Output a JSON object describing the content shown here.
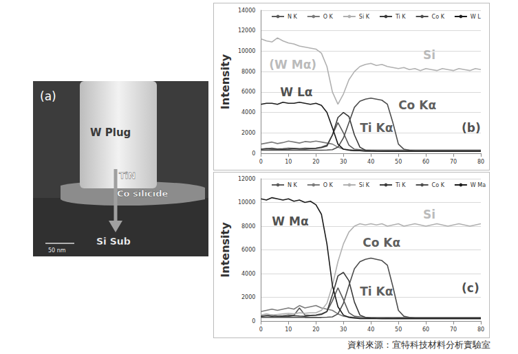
{
  "panel_a": {
    "label": "(a)",
    "labels": [
      "W Plug",
      "TiN",
      "Co silicide",
      "Si Sub"
    ],
    "scale_bar": "50 nm"
  },
  "source": "資料來源：宜特科技材料分析實驗室",
  "chart_data": [
    {
      "type": "line",
      "y_label": "Intensity",
      "legend": "top",
      "grid": true,
      "xlim": [
        0,
        80
      ],
      "xticks": [
        0,
        10,
        20,
        30,
        40,
        50,
        60,
        70,
        80
      ],
      "ylim": [
        0,
        14000
      ],
      "yticks": [
        0,
        2000,
        4000,
        6000,
        8000,
        10000,
        12000,
        14000
      ],
      "x": [
        0,
        2,
        4,
        6,
        8,
        10,
        12,
        14,
        16,
        18,
        20,
        22,
        24,
        26,
        28,
        30,
        32,
        34,
        36,
        38,
        40,
        42,
        44,
        46,
        48,
        50,
        52,
        54,
        56,
        58,
        60,
        62,
        64,
        66,
        68,
        70,
        72,
        74,
        76,
        78,
        80
      ],
      "series": [
        {
          "name": "N K",
          "color": "#5a5a5a",
          "values": [
            400,
            450,
            500,
            420,
            450,
            500,
            480,
            450,
            500,
            480,
            500,
            600,
            800,
            1800,
            3000,
            2000,
            800,
            400,
            350,
            300,
            300,
            300,
            300,
            300,
            300,
            300,
            300,
            300,
            300,
            300,
            300,
            300,
            300,
            300,
            300,
            300,
            300,
            300,
            300,
            300,
            300
          ]
        },
        {
          "name": "O K",
          "color": "#7a7a7a",
          "values": [
            900,
            1000,
            1100,
            950,
            1050,
            1200,
            1100,
            1000,
            1150,
            1100,
            1200,
            1100,
            1000,
            900,
            600,
            400,
            350,
            300,
            300,
            300,
            300,
            300,
            300,
            300,
            300,
            300,
            300,
            300,
            300,
            300,
            300,
            300,
            300,
            300,
            300,
            300,
            300,
            300,
            300,
            300,
            300
          ]
        },
        {
          "name": "Si K",
          "color": "#b0b0b0",
          "values": [
            11200,
            11000,
            10900,
            11300,
            11000,
            10800,
            10700,
            10500,
            10400,
            10300,
            10200,
            9800,
            8500,
            6000,
            4800,
            5800,
            7200,
            8000,
            8500,
            8700,
            8800,
            8600,
            8700,
            8500,
            8400,
            8300,
            8400,
            8200,
            8300,
            8100,
            8300,
            8200,
            8100,
            8300,
            8200,
            8100,
            8300,
            8200,
            8100,
            8300,
            8200
          ]
        },
        {
          "name": "Ti K",
          "color": "#3a3a3a",
          "values": [
            400,
            450,
            400,
            420,
            380,
            400,
            450,
            420,
            400,
            450,
            480,
            550,
            700,
            1800,
            3500,
            4000,
            3600,
            1800,
            600,
            300,
            250,
            220,
            200,
            210,
            200,
            220,
            200,
            210,
            200,
            200,
            200,
            200,
            200,
            200,
            200,
            200,
            200,
            200,
            200,
            200,
            200
          ]
        },
        {
          "name": "Co K",
          "color": "#4d4d4d",
          "values": [
            300,
            320,
            300,
            310,
            300,
            320,
            300,
            310,
            300,
            300,
            300,
            300,
            320,
            350,
            600,
            1500,
            3000,
            4500,
            5100,
            5300,
            5400,
            5300,
            5200,
            4800,
            3000,
            900,
            400,
            300,
            250,
            250,
            250,
            250,
            250,
            250,
            250,
            250,
            250,
            250,
            250,
            250,
            250
          ]
        },
        {
          "name": "W L",
          "color": "#1a1a1a",
          "values": [
            4800,
            4900,
            4900,
            4800,
            5000,
            4900,
            4900,
            5000,
            4900,
            4800,
            4900,
            4700,
            4000,
            2500,
            900,
            400,
            300,
            250,
            250,
            200,
            200,
            200,
            200,
            200,
            200,
            200,
            200,
            200,
            200,
            200,
            200,
            200,
            200,
            200,
            200,
            200,
            200,
            200,
            200,
            200,
            200
          ]
        }
      ],
      "annotations": [
        {
          "text": "(W Mα)",
          "x": 3,
          "y": 8700,
          "color": "#a8a8a8"
        },
        {
          "text": "Si",
          "x": 59,
          "y": 9600,
          "color": "#a8a8a8"
        },
        {
          "text": "W Lα",
          "x": 7,
          "y": 6000,
          "color": "#222222"
        },
        {
          "text": "Ti Kα",
          "x": 36,
          "y": 2500,
          "color": "#333333"
        },
        {
          "text": "Co Kα",
          "x": 50,
          "y": 4700,
          "color": "#333333"
        },
        {
          "text": "(b)",
          "x": 73,
          "y": 2500,
          "color": "#222222"
        }
      ]
    },
    {
      "type": "line",
      "y_label": "Intensity",
      "legend": "top",
      "grid": true,
      "xlim": [
        0,
        80
      ],
      "xticks": [
        0,
        10,
        20,
        30,
        40,
        50,
        60,
        70,
        80
      ],
      "ylim": [
        0,
        12000
      ],
      "yticks": [
        0,
        2000,
        4000,
        6000,
        8000,
        10000,
        12000
      ],
      "x": [
        0,
        2,
        4,
        6,
        8,
        10,
        12,
        14,
        16,
        18,
        20,
        22,
        24,
        26,
        28,
        30,
        32,
        34,
        36,
        38,
        40,
        42,
        44,
        46,
        48,
        50,
        52,
        54,
        56,
        58,
        60,
        62,
        64,
        66,
        68,
        70,
        72,
        74,
        76,
        78,
        80
      ],
      "series": [
        {
          "name": "N K",
          "color": "#5a5a5a",
          "values": [
            400,
            450,
            500,
            420,
            450,
            500,
            480,
            1100,
            500,
            480,
            500,
            600,
            800,
            1700,
            2800,
            1800,
            700,
            400,
            350,
            300,
            300,
            300,
            300,
            300,
            300,
            300,
            300,
            300,
            300,
            300,
            300,
            300,
            300,
            300,
            300,
            300,
            300,
            300,
            300,
            300,
            300
          ]
        },
        {
          "name": "O K",
          "color": "#7a7a7a",
          "values": [
            800,
            900,
            1000,
            900,
            1000,
            1100,
            1000,
            1300,
            1100,
            1200,
            1300,
            1100,
            1000,
            900,
            600,
            400,
            350,
            300,
            300,
            300,
            300,
            300,
            300,
            300,
            300,
            300,
            300,
            300,
            300,
            300,
            300,
            300,
            300,
            300,
            300,
            300,
            300,
            300,
            300,
            300,
            300
          ]
        },
        {
          "name": "Si K",
          "color": "#b0b0b0",
          "values": [
            500,
            600,
            500,
            550,
            600,
            650,
            600,
            700,
            650,
            700,
            700,
            900,
            1500,
            3000,
            5000,
            6500,
            7500,
            8000,
            8200,
            8100,
            8200,
            8100,
            8200,
            8000,
            8100,
            8200,
            8000,
            8100,
            8200,
            8100,
            8000,
            8100,
            8200,
            8100,
            8000,
            8100,
            8200,
            8100,
            8000,
            8100,
            8200
          ]
        },
        {
          "name": "Ti K",
          "color": "#3a3a3a",
          "values": [
            400,
            450,
            400,
            420,
            380,
            400,
            450,
            420,
            400,
            450,
            480,
            550,
            800,
            2200,
            3800,
            4100,
            3400,
            1600,
            500,
            300,
            250,
            220,
            200,
            210,
            200,
            220,
            200,
            210,
            200,
            200,
            200,
            200,
            200,
            200,
            200,
            200,
            200,
            200,
            200,
            200,
            200
          ]
        },
        {
          "name": "Co K",
          "color": "#4d4d4d",
          "values": [
            300,
            320,
            300,
            310,
            300,
            320,
            300,
            310,
            300,
            300,
            300,
            300,
            320,
            350,
            600,
            1500,
            3000,
            4400,
            5000,
            5200,
            5300,
            5200,
            5100,
            4700,
            2900,
            900,
            400,
            300,
            250,
            250,
            250,
            250,
            250,
            250,
            250,
            250,
            250,
            250,
            250,
            250,
            250
          ]
        },
        {
          "name": "W Ma",
          "color": "#1a1a1a",
          "values": [
            10300,
            10200,
            10400,
            10300,
            10200,
            10300,
            10100,
            10200,
            10000,
            10100,
            9800,
            9000,
            6500,
            3000,
            1200,
            500,
            300,
            250,
            200,
            200,
            200,
            200,
            200,
            200,
            200,
            200,
            200,
            200,
            200,
            200,
            200,
            200,
            200,
            200,
            200,
            200,
            200,
            200,
            200,
            200,
            200
          ]
        }
      ],
      "annotations": [
        {
          "text": "W Mα",
          "x": 4,
          "y": 8400,
          "color": "#222222"
        },
        {
          "text": "Si",
          "x": 59,
          "y": 9000,
          "color": "#a8a8a8"
        },
        {
          "text": "Co Kα",
          "x": 37,
          "y": 6600,
          "color": "#333333"
        },
        {
          "text": "Ti Kα",
          "x": 36,
          "y": 2500,
          "color": "#333333"
        },
        {
          "text": "(c)",
          "x": 73,
          "y": 2800,
          "color": "#222222"
        }
      ]
    }
  ]
}
